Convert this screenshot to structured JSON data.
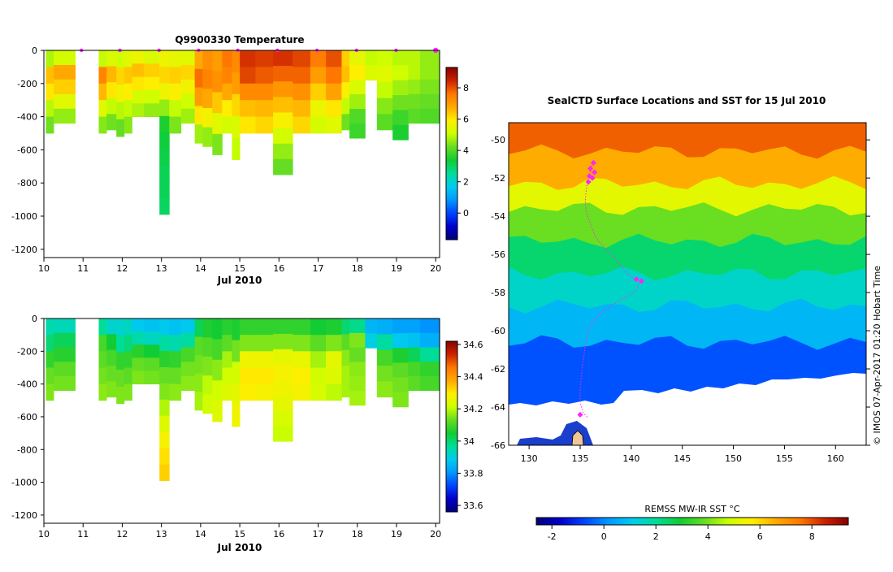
{
  "chart_data": [
    {
      "type": "heatmap",
      "title": "Q9900330  Temperature",
      "xlabel": "Jul 2010",
      "ylabel": "",
      "xlim": [
        10,
        20.1
      ],
      "ylim": [
        -1250,
        0
      ],
      "x_ticks": [
        "10",
        "11",
        "12",
        "13",
        "14",
        "15",
        "16",
        "17",
        "18",
        "19",
        "20"
      ],
      "y_ticks": [
        "0",
        "-200",
        "-400",
        "-600",
        "-800",
        "-1000",
        "-1200"
      ],
      "colorbar": {
        "range": [
          -1.7,
          9.3
        ],
        "ticks": [
          "8",
          "6",
          "4",
          "2",
          "0"
        ],
        "tick_values": [
          8,
          6,
          4,
          2,
          0
        ]
      },
      "profile_markers_x": [
        10.96,
        11.94,
        12.94,
        13.95,
        14.95,
        15.96,
        16.97,
        17.98,
        18.99,
        20.0
      ],
      "profiles": [
        {
          "x0": 10.05,
          "x1": 10.25,
          "depth": -500,
          "values": [
            4.8,
            6.5,
            6.0,
            4.9,
            4.3
          ]
        },
        {
          "x0": 10.25,
          "x1": 10.8,
          "depth": -440,
          "values": [
            5.2,
            6.8,
            6.3,
            5.4,
            4.6
          ]
        },
        {
          "x0": 11.4,
          "x1": 11.6,
          "depth": -500,
          "values": [
            5.0,
            7.4,
            6.6,
            5.4,
            4.5
          ]
        },
        {
          "x0": 11.6,
          "x1": 11.85,
          "depth": -480,
          "values": [
            5.3,
            6.6,
            6.0,
            5.0,
            4.3
          ]
        },
        {
          "x0": 11.85,
          "x1": 12.05,
          "depth": -520,
          "values": [
            5.1,
            6.2,
            5.7,
            4.9,
            4.2
          ]
        },
        {
          "x0": 12.05,
          "x1": 12.25,
          "depth": -500,
          "values": [
            5.4,
            6.4,
            5.9,
            5.0,
            4.5
          ]
        },
        {
          "x0": 12.25,
          "x1": 12.55,
          "depth": -400,
          "values": [
            5.6,
            6.5,
            6.0,
            5.2,
            4.8
          ]
        },
        {
          "x0": 12.55,
          "x1": 12.95,
          "depth": -400,
          "values": [
            5.3,
            6.3,
            5.9,
            5.1,
            4.6
          ]
        },
        {
          "x0": 12.95,
          "x1": 13.2,
          "depth": -990,
          "values": [
            5.6,
            6.2,
            5.6,
            4.6,
            3.5,
            3.3,
            3.2,
            3.1,
            3.1,
            3.0
          ]
        },
        {
          "x0": 13.2,
          "x1": 13.5,
          "depth": -500,
          "values": [
            5.5,
            6.3,
            5.8,
            5.0,
            4.4
          ]
        },
        {
          "x0": 13.5,
          "x1": 13.85,
          "depth": -440,
          "values": [
            5.4,
            6.2,
            5.7,
            5.1,
            4.7
          ]
        },
        {
          "x0": 13.85,
          "x1": 14.05,
          "depth": -560,
          "values": [
            6.8,
            7.7,
            7.0,
            6.0,
            4.7
          ]
        },
        {
          "x0": 14.05,
          "x1": 14.3,
          "depth": -580,
          "values": [
            7.2,
            7.4,
            6.8,
            5.7,
            4.6
          ]
        },
        {
          "x0": 14.3,
          "x1": 14.55,
          "depth": -630,
          "values": [
            7.0,
            7.2,
            6.4,
            5.4,
            4.4
          ]
        },
        {
          "x0": 14.55,
          "x1": 14.8,
          "depth": -500,
          "values": [
            7.6,
            7.4,
            6.8,
            5.9,
            5.2
          ]
        },
        {
          "x0": 14.8,
          "x1": 15.0,
          "depth": -660,
          "values": [
            7.3,
            7.0,
            6.2,
            5.3,
            5.0
          ]
        },
        {
          "x0": 15.0,
          "x1": 15.4,
          "depth": -500,
          "values": [
            8.3,
            8.1,
            7.3,
            6.5,
            6.0
          ]
        },
        {
          "x0": 15.4,
          "x1": 15.85,
          "depth": -500,
          "values": [
            8.2,
            7.9,
            7.3,
            6.6,
            6.2
          ]
        },
        {
          "x0": 15.85,
          "x1": 16.35,
          "depth": -750,
          "values": [
            8.3,
            7.8,
            7.1,
            6.5,
            5.8,
            5.2,
            4.6,
            4.2
          ]
        },
        {
          "x0": 16.35,
          "x1": 16.8,
          "depth": -500,
          "values": [
            8.1,
            7.8,
            7.2,
            6.6,
            6.2
          ]
        },
        {
          "x0": 16.8,
          "x1": 17.2,
          "depth": -500,
          "values": [
            7.5,
            7.0,
            6.3,
            5.6,
            5.2
          ]
        },
        {
          "x0": 17.2,
          "x1": 17.6,
          "depth": -500,
          "values": [
            8.0,
            7.6,
            6.9,
            6.0,
            5.4
          ]
        },
        {
          "x0": 17.6,
          "x1": 17.8,
          "depth": -480,
          "values": [
            6.3,
            6.5,
            5.8,
            5.0,
            4.3
          ]
        },
        {
          "x0": 17.8,
          "x1": 18.2,
          "depth": -530,
          "values": [
            5.5,
            5.9,
            5.3,
            4.7,
            4.0,
            3.8
          ]
        },
        {
          "x0": 18.2,
          "x1": 18.5,
          "depth": -180,
          "values": [
            5.0,
            5.3
          ]
        },
        {
          "x0": 18.5,
          "x1": 18.9,
          "depth": -480,
          "values": [
            5.1,
            5.4,
            5.0,
            4.5,
            4.1
          ]
        },
        {
          "x0": 18.9,
          "x1": 19.3,
          "depth": -540,
          "values": [
            4.9,
            5.1,
            4.7,
            4.3,
            3.8,
            3.5
          ]
        },
        {
          "x0": 19.3,
          "x1": 19.6,
          "depth": -440,
          "values": [
            4.9,
            4.9,
            4.6,
            4.3,
            4.1
          ]
        },
        {
          "x0": 19.6,
          "x1": 20.1,
          "depth": -440,
          "values": [
            4.6,
            4.6,
            4.4,
            4.2,
            4.0
          ]
        }
      ]
    },
    {
      "type": "heatmap",
      "title": "",
      "xlabel": "Jul 2010",
      "ylabel": "",
      "xlim": [
        10,
        20.1
      ],
      "ylim": [
        -1250,
        0
      ],
      "x_ticks": [
        "10",
        "11",
        "12",
        "13",
        "14",
        "15",
        "16",
        "17",
        "18",
        "19",
        "20"
      ],
      "y_ticks": [
        "0",
        "-200",
        "-400",
        "-600",
        "-800",
        "-1000",
        "-1200"
      ],
      "colorbar": {
        "range": [
          33.56,
          34.62
        ],
        "ticks": [
          "34.6",
          "34.4",
          "34.2",
          "34",
          "33.8",
          "33.6"
        ],
        "tick_values": [
          34.6,
          34.4,
          34.2,
          34.0,
          33.8,
          33.6
        ]
      },
      "profiles": [
        {
          "x0": 10.05,
          "x1": 10.25,
          "depth": -500,
          "values": [
            33.95,
            34.0,
            34.08,
            34.13,
            34.15
          ]
        },
        {
          "x0": 10.25,
          "x1": 10.8,
          "depth": -440,
          "values": [
            33.94,
            34.02,
            34.07,
            34.12,
            34.14
          ]
        },
        {
          "x0": 11.4,
          "x1": 11.6,
          "depth": -500,
          "values": [
            33.97,
            34.1,
            34.12,
            34.14,
            34.16
          ]
        },
        {
          "x0": 11.6,
          "x1": 11.85,
          "depth": -480,
          "values": [
            33.92,
            34.05,
            34.1,
            34.13,
            34.15
          ]
        },
        {
          "x0": 11.85,
          "x1": 12.05,
          "depth": -520,
          "values": [
            33.92,
            33.97,
            34.08,
            34.13,
            34.15
          ]
        },
        {
          "x0": 12.05,
          "x1": 12.25,
          "depth": -500,
          "values": [
            33.93,
            33.99,
            34.08,
            34.12,
            34.15
          ]
        },
        {
          "x0": 12.25,
          "x1": 12.55,
          "depth": -400,
          "values": [
            33.88,
            33.95,
            34.07,
            34.13,
            34.15
          ]
        },
        {
          "x0": 12.55,
          "x1": 12.95,
          "depth": -400,
          "values": [
            33.87,
            33.93,
            34.05,
            34.12,
            34.14
          ]
        },
        {
          "x0": 12.95,
          "x1": 13.2,
          "depth": -990,
          "values": [
            33.88,
            33.96,
            34.07,
            34.13,
            34.15,
            34.19,
            34.24,
            34.28,
            34.31,
            34.33
          ]
        },
        {
          "x0": 13.2,
          "x1": 13.5,
          "depth": -500,
          "values": [
            33.87,
            33.95,
            34.08,
            34.13,
            34.16
          ]
        },
        {
          "x0": 13.5,
          "x1": 13.85,
          "depth": -440,
          "values": [
            33.88,
            33.96,
            34.1,
            34.14,
            34.16
          ]
        },
        {
          "x0": 13.85,
          "x1": 14.05,
          "depth": -560,
          "values": [
            34.02,
            34.12,
            34.14,
            34.16,
            34.18
          ]
        },
        {
          "x0": 14.05,
          "x1": 14.3,
          "depth": -580,
          "values": [
            34.06,
            34.11,
            34.15,
            34.2,
            34.22
          ]
        },
        {
          "x0": 14.3,
          "x1": 14.55,
          "depth": -630,
          "values": [
            34.05,
            34.1,
            34.16,
            34.22,
            34.24
          ]
        },
        {
          "x0": 14.55,
          "x1": 14.8,
          "depth": -500,
          "values": [
            34.07,
            34.12,
            34.18,
            34.22,
            34.24
          ]
        },
        {
          "x0": 14.8,
          "x1": 15.0,
          "depth": -660,
          "values": [
            34.06,
            34.14,
            34.22,
            34.25,
            34.27
          ]
        },
        {
          "x0": 15.0,
          "x1": 15.4,
          "depth": -500,
          "values": [
            34.08,
            34.15,
            34.27,
            34.3,
            34.29
          ]
        },
        {
          "x0": 15.4,
          "x1": 15.85,
          "depth": -500,
          "values": [
            34.08,
            34.15,
            34.27,
            34.3,
            34.28
          ]
        },
        {
          "x0": 15.85,
          "x1": 16.35,
          "depth": -750,
          "values": [
            34.08,
            34.15,
            34.25,
            34.28,
            34.27,
            34.25,
            34.23,
            34.21
          ]
        },
        {
          "x0": 16.35,
          "x1": 16.8,
          "depth": -500,
          "values": [
            34.08,
            34.15,
            34.26,
            34.29,
            34.28
          ]
        },
        {
          "x0": 16.8,
          "x1": 17.2,
          "depth": -500,
          "values": [
            34.05,
            34.12,
            34.18,
            34.22,
            34.23
          ]
        },
        {
          "x0": 17.2,
          "x1": 17.6,
          "depth": -500,
          "values": [
            34.06,
            34.15,
            34.25,
            34.24,
            34.2
          ]
        },
        {
          "x0": 17.6,
          "x1": 17.8,
          "depth": -480,
          "values": [
            34.0,
            34.12,
            34.16,
            34.18,
            34.18
          ]
        },
        {
          "x0": 17.8,
          "x1": 18.2,
          "depth": -530,
          "values": [
            33.98,
            34.15,
            34.13,
            34.16,
            34.17,
            34.18
          ]
        },
        {
          "x0": 18.2,
          "x1": 18.5,
          "depth": -180,
          "values": [
            33.85,
            33.9
          ]
        },
        {
          "x0": 18.5,
          "x1": 18.9,
          "depth": -480,
          "values": [
            33.84,
            33.96,
            34.1,
            34.14,
            34.16
          ]
        },
        {
          "x0": 18.9,
          "x1": 19.3,
          "depth": -540,
          "values": [
            33.82,
            33.88,
            34.06,
            34.12,
            34.14,
            34.15
          ]
        },
        {
          "x0": 19.3,
          "x1": 19.6,
          "depth": -440,
          "values": [
            33.82,
            33.87,
            34.02,
            34.1,
            34.12
          ]
        },
        {
          "x0": 19.6,
          "x1": 20.1,
          "depth": -440,
          "values": [
            33.8,
            33.84,
            33.97,
            34.08,
            34.1
          ]
        }
      ]
    },
    {
      "type": "heatmap",
      "title": "SealCTD Surface Locations and SST for 15 Jul 2010",
      "xlabel": "",
      "ylabel": "",
      "xlim": [
        128,
        163
      ],
      "ylim": [
        -66,
        -49.1
      ],
      "x_ticks": [
        "130",
        "135",
        "140",
        "145",
        "150",
        "155",
        "160"
      ],
      "y_ticks": [
        "-50",
        "-52",
        "-54",
        "-56",
        "-58",
        "-60",
        "-62",
        "-64",
        "-66"
      ],
      "colorbar": {
        "label": "REMSS MW-IR SST °C",
        "range": [
          -2.6,
          9.4
        ],
        "ticks": [
          "-2",
          "0",
          "2",
          "4",
          "6",
          "8"
        ],
        "tick_values": [
          -2,
          0,
          2,
          4,
          6,
          8
        ]
      },
      "sst_bands": [
        {
          "lat_top": -49.1,
          "lat_bottom": -50.6,
          "value": 7.8
        },
        {
          "lat_top": -50.6,
          "lat_bottom": -52.3,
          "value": 6.6
        },
        {
          "lat_top": -52.3,
          "lat_bottom": -53.6,
          "value": 5.2
        },
        {
          "lat_top": -53.6,
          "lat_bottom": -55.3,
          "value": 3.9
        },
        {
          "lat_top": -55.3,
          "lat_bottom": -57.0,
          "value": 2.4
        },
        {
          "lat_top": -57.0,
          "lat_bottom": -58.7,
          "value": 1.5
        },
        {
          "lat_top": -58.7,
          "lat_bottom": -60.6,
          "value": 0.7
        },
        {
          "lat_top": -60.6,
          "lat_bottom": -66.0,
          "value": -0.6
        }
      ],
      "track": [
        [
          136.2,
          -51.2
        ],
        [
          136.0,
          -51.6
        ],
        [
          135.8,
          -52.0
        ],
        [
          135.6,
          -52.6
        ],
        [
          135.5,
          -53.2
        ],
        [
          135.6,
          -53.8
        ],
        [
          136.0,
          -54.4
        ],
        [
          136.5,
          -55.1
        ],
        [
          137.3,
          -55.6
        ],
        [
          138.0,
          -56.0
        ],
        [
          138.8,
          -56.5
        ],
        [
          139.6,
          -57.0
        ],
        [
          140.3,
          -57.3
        ],
        [
          140.8,
          -57.4
        ],
        [
          140.5,
          -57.9
        ],
        [
          139.6,
          -58.2
        ],
        [
          138.3,
          -58.6
        ],
        [
          137.0,
          -59.1
        ],
        [
          136.0,
          -59.7
        ],
        [
          135.6,
          -60.4
        ],
        [
          135.4,
          -61.2
        ],
        [
          135.2,
          -62.0
        ],
        [
          135.0,
          -63.0
        ],
        [
          135.0,
          -63.8
        ],
        [
          135.3,
          -64.3
        ],
        [
          135.8,
          -64.6
        ]
      ],
      "surface_locations": [
        [
          136.3,
          -51.2
        ],
        [
          136.0,
          -51.5
        ],
        [
          136.4,
          -51.7
        ],
        [
          135.9,
          -51.9
        ],
        [
          136.2,
          -52.0
        ],
        [
          135.8,
          -52.2
        ],
        [
          140.5,
          -57.3
        ],
        [
          141.0,
          -57.4
        ],
        [
          135.0,
          -64.4
        ]
      ],
      "credit": "© IMOS 07-Apr-2017 01:20 Hobart Time"
    }
  ],
  "palette": [
    "#00007a",
    "#0000cc",
    "#0044ff",
    "#0099ff",
    "#00ccee",
    "#00dd99",
    "#11cc33",
    "#66dd22",
    "#ccff00",
    "#ffee00",
    "#ffaa00",
    "#ff7700",
    "#cc2200",
    "#880000"
  ],
  "map_colors": {
    "land": "#f0c898",
    "no_data": "#ffffff",
    "frame": "#000000"
  }
}
